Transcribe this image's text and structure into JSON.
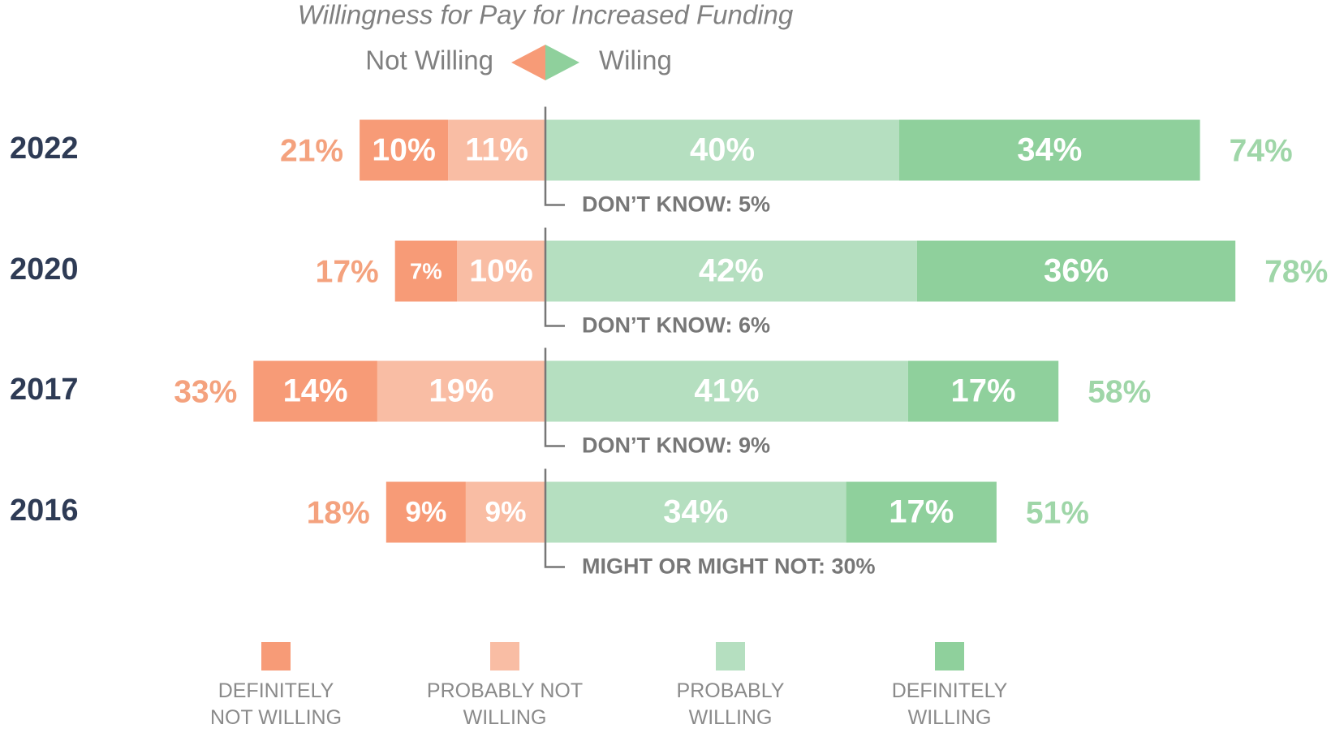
{
  "chart_data": {
    "type": "diverging_bar",
    "title": "Willingness for Pay for Increased Funding",
    "direction_labels": [
      "Not Willing",
      "Wiling"
    ],
    "categories": [
      "2022",
      "2020",
      "2017",
      "2016"
    ],
    "groups": [
      {
        "series": [
          {
            "name": "DEFINITELY NOT WILLING",
            "color": "#f79b77",
            "values": [
              10,
              7,
              14,
              9
            ],
            "value_labels": [
              "10%",
              "7%",
              "14%",
              "9%"
            ]
          },
          {
            "name": "PROBABLY NOT WILLING",
            "color": "#f9bda4",
            "values": [
              11,
              10,
              19,
              9
            ],
            "value_labels": [
              "11%",
              "10%",
              "19%",
              "9%"
            ]
          }
        ],
        "total": {
          "color": "#f4a27e",
          "values": [
            21,
            17,
            33,
            18
          ],
          "value_labels": [
            "21%",
            "17%",
            "33%",
            "18%"
          ]
        }
      },
      {
        "series": [
          {
            "name": "PROBABLY WILLING",
            "color": "#b5dfc0",
            "values": [
              40,
              42,
              41,
              34
            ],
            "value_labels": [
              "40%",
              "42%",
              "41%",
              "34%"
            ]
          },
          {
            "name": "DEFINITELY WILLING",
            "color": "#8fd09c",
            "values": [
              34,
              36,
              17,
              17
            ],
            "value_labels": [
              "34%",
              "36%",
              "17%",
              "17%"
            ]
          }
        ],
        "total": {
          "color": "#9fd6a8",
          "values": [
            74,
            78,
            58,
            51
          ],
          "value_labels": [
            "74%",
            "78%",
            "58%",
            "51%"
          ]
        }
      }
    ],
    "annotations": [
      "DON’T KNOW: 5%",
      "DON’T KNOW: 6%",
      "DON’T KNOW: 9%",
      "MIGHT OR MIGHT NOT: 30%"
    ]
  }
}
